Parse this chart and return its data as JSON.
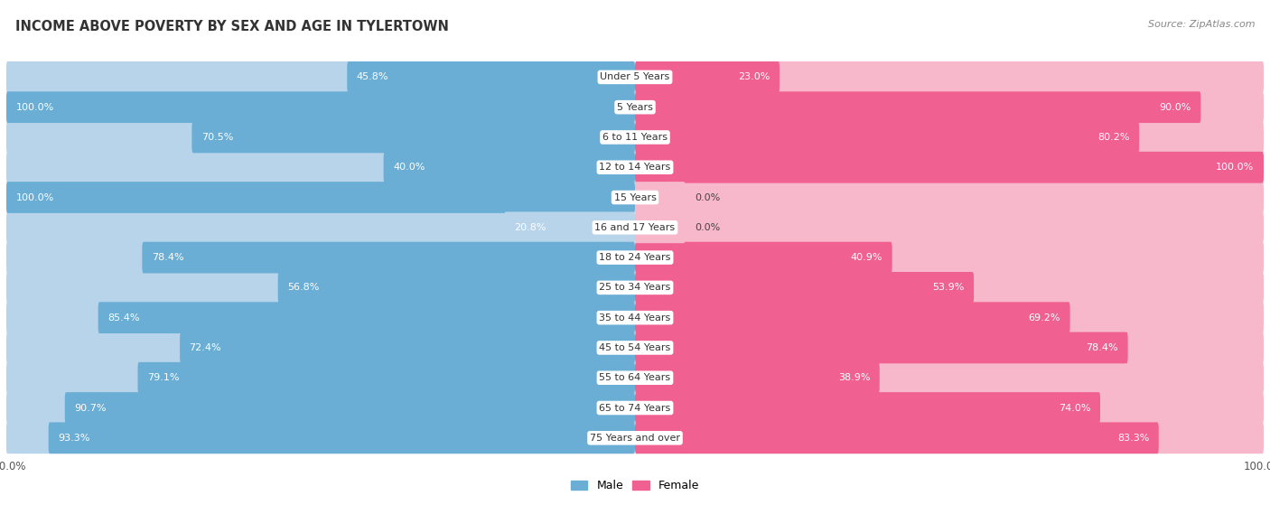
{
  "title": "INCOME ABOVE POVERTY BY SEX AND AGE IN TYLERTOWN",
  "source": "Source: ZipAtlas.com",
  "categories": [
    "Under 5 Years",
    "5 Years",
    "6 to 11 Years",
    "12 to 14 Years",
    "15 Years",
    "16 and 17 Years",
    "18 to 24 Years",
    "25 to 34 Years",
    "35 to 44 Years",
    "45 to 54 Years",
    "55 to 64 Years",
    "65 to 74 Years",
    "75 Years and over"
  ],
  "male_values": [
    45.8,
    100.0,
    70.5,
    40.0,
    100.0,
    20.8,
    78.4,
    56.8,
    85.4,
    72.4,
    79.1,
    90.7,
    93.3
  ],
  "female_values": [
    23.0,
    90.0,
    80.2,
    100.0,
    0.0,
    0.0,
    40.9,
    53.9,
    69.2,
    78.4,
    38.9,
    74.0,
    83.3
  ],
  "male_color": "#6aaed6",
  "male_color_light": "#b8d4ea",
  "female_color": "#f06090",
  "female_color_light": "#f8b8cc",
  "bg_odd": "#eeeff4",
  "bg_even": "#f8f8fa",
  "title_fontsize": 10.5,
  "source_fontsize": 8,
  "label_fontsize": 8,
  "value_fontsize": 8,
  "max_val": 100.0,
  "light_male_rows": [
    5
  ],
  "light_female_rows": [
    4,
    5
  ]
}
